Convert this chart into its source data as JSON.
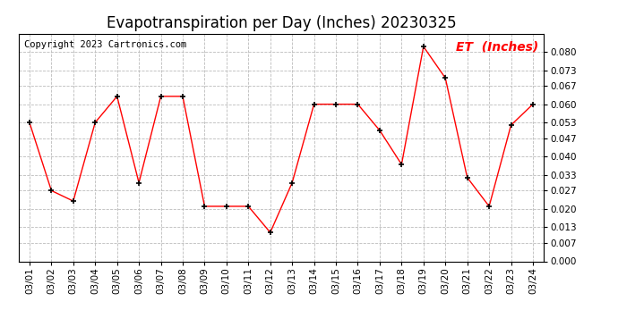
{
  "title": "Evapotranspiration per Day (Inches) 20230325",
  "copyright": "Copyright 2023 Cartronics.com",
  "legend_label": "ET  (Inches)",
  "dates": [
    "03/01",
    "03/02",
    "03/03",
    "03/04",
    "03/05",
    "03/06",
    "03/07",
    "03/08",
    "03/09",
    "03/10",
    "03/11",
    "03/12",
    "03/13",
    "03/14",
    "03/15",
    "03/16",
    "03/17",
    "03/18",
    "03/19",
    "03/20",
    "03/21",
    "03/22",
    "03/23",
    "03/24"
  ],
  "values": [
    0.053,
    0.027,
    0.023,
    0.053,
    0.063,
    0.03,
    0.063,
    0.063,
    0.021,
    0.021,
    0.021,
    0.011,
    0.03,
    0.06,
    0.06,
    0.06,
    0.05,
    0.037,
    0.082,
    0.07,
    0.032,
    0.021,
    0.052,
    0.06
  ],
  "line_color": "#ff0000",
  "marker_color": "#000000",
  "legend_color": "#ff0000",
  "background_color": "#ffffff",
  "grid_color": "#bbbbbb",
  "ylim": [
    0.0,
    0.087
  ],
  "yticks": [
    0.0,
    0.007,
    0.013,
    0.02,
    0.027,
    0.033,
    0.04,
    0.047,
    0.053,
    0.06,
    0.067,
    0.073,
    0.08
  ],
  "title_fontsize": 12,
  "copyright_fontsize": 7.5,
  "tick_fontsize": 7.5,
  "legend_fontsize": 10
}
